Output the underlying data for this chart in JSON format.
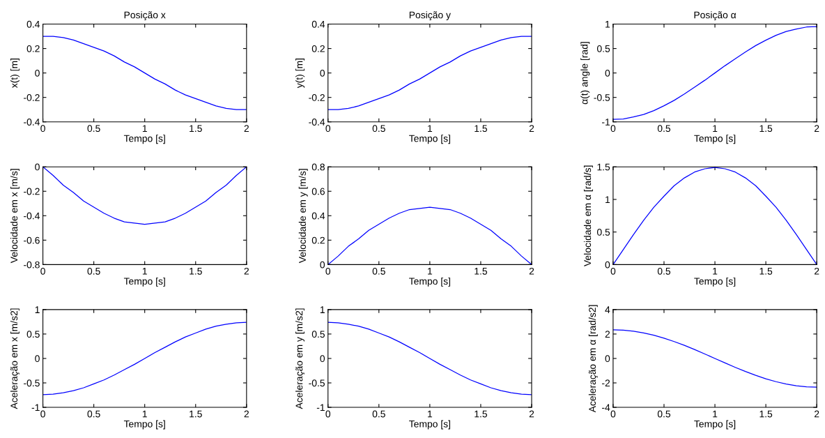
{
  "chart_data": [
    {
      "type": "line",
      "title": "Posição x",
      "xlabel": "Tempo [s]",
      "ylabel": "x(t) [m]",
      "x": [
        0,
        0.1,
        0.2,
        0.3,
        0.4,
        0.5,
        0.6,
        0.7,
        0.8,
        0.9,
        1,
        1.1,
        1.2,
        1.3,
        1.4,
        1.5,
        1.6,
        1.7,
        1.8,
        1.9,
        2
      ],
      "series": [
        {
          "color": "#0000ff",
          "values": [
            0.3,
            0.3,
            0.29,
            0.27,
            0.24,
            0.21,
            0.18,
            0.14,
            0.09,
            0.05,
            0,
            -0.05,
            -0.09,
            -0.14,
            -0.18,
            -0.21,
            -0.24,
            -0.27,
            -0.29,
            -0.3,
            -0.3
          ]
        }
      ],
      "xlim": [
        0,
        2
      ],
      "xticks": [
        0,
        0.5,
        1,
        1.5,
        2
      ],
      "ylim": [
        -0.4,
        0.4
      ],
      "yticks": [
        -0.4,
        -0.2,
        0,
        0.2,
        0.4
      ]
    },
    {
      "type": "line",
      "title": "Posição y",
      "xlabel": "Tempo [s]",
      "ylabel": "y(t) [m]",
      "x": [
        0,
        0.1,
        0.2,
        0.3,
        0.4,
        0.5,
        0.6,
        0.7,
        0.8,
        0.9,
        1,
        1.1,
        1.2,
        1.3,
        1.4,
        1.5,
        1.6,
        1.7,
        1.8,
        1.9,
        2
      ],
      "series": [
        {
          "color": "#0000ff",
          "values": [
            -0.3,
            -0.3,
            -0.29,
            -0.27,
            -0.24,
            -0.21,
            -0.18,
            -0.14,
            -0.09,
            -0.05,
            0,
            0.05,
            0.09,
            0.14,
            0.18,
            0.21,
            0.24,
            0.27,
            0.29,
            0.3,
            0.3
          ]
        }
      ],
      "xlim": [
        0,
        2
      ],
      "xticks": [
        0,
        0.5,
        1,
        1.5,
        2
      ],
      "ylim": [
        -0.4,
        0.4
      ],
      "yticks": [
        -0.4,
        -0.2,
        0,
        0.2,
        0.4
      ]
    },
    {
      "type": "line",
      "title": "Posição α",
      "xlabel": "Tempo [s]",
      "ylabel": "α(t) angle [rad]",
      "x": [
        0,
        0.1,
        0.2,
        0.3,
        0.4,
        0.5,
        0.6,
        0.7,
        0.8,
        0.9,
        1,
        1.1,
        1.2,
        1.3,
        1.4,
        1.5,
        1.6,
        1.7,
        1.8,
        1.9,
        2
      ],
      "series": [
        {
          "color": "#0000ff",
          "values": [
            -0.95,
            -0.94,
            -0.9,
            -0.85,
            -0.77,
            -0.67,
            -0.56,
            -0.43,
            -0.29,
            -0.15,
            0,
            0.15,
            0.29,
            0.43,
            0.56,
            0.67,
            0.77,
            0.85,
            0.9,
            0.94,
            0.95
          ]
        }
      ],
      "xlim": [
        0,
        2
      ],
      "xticks": [
        0,
        0.5,
        1,
        1.5,
        2
      ],
      "ylim": [
        -1,
        1
      ],
      "yticks": [
        -1,
        -0.5,
        0,
        0.5,
        1
      ]
    },
    {
      "type": "line",
      "xlabel": "Tempo [s]",
      "ylabel": "Velocidade em x [m/s]",
      "x": [
        0,
        0.1,
        0.2,
        0.3,
        0.4,
        0.5,
        0.6,
        0.7,
        0.8,
        0.9,
        1,
        1.1,
        1.2,
        1.3,
        1.4,
        1.5,
        1.6,
        1.7,
        1.8,
        1.9,
        2
      ],
      "series": [
        {
          "color": "#0000ff",
          "values": [
            0,
            -0.07,
            -0.15,
            -0.21,
            -0.28,
            -0.33,
            -0.38,
            -0.42,
            -0.45,
            -0.46,
            -0.47,
            -0.46,
            -0.45,
            -0.42,
            -0.38,
            -0.33,
            -0.28,
            -0.21,
            -0.15,
            -0.07,
            0
          ]
        }
      ],
      "xlim": [
        0,
        2
      ],
      "xticks": [
        0,
        0.5,
        1,
        1.5,
        2
      ],
      "ylim": [
        -0.8,
        0
      ],
      "yticks": [
        -0.8,
        -0.6,
        -0.4,
        -0.2,
        0
      ]
    },
    {
      "type": "line",
      "xlabel": "Tempo [s]",
      "ylabel": "Velocidade em y [m/s]",
      "x": [
        0,
        0.1,
        0.2,
        0.3,
        0.4,
        0.5,
        0.6,
        0.7,
        0.8,
        0.9,
        1,
        1.1,
        1.2,
        1.3,
        1.4,
        1.5,
        1.6,
        1.7,
        1.8,
        1.9,
        2
      ],
      "series": [
        {
          "color": "#0000ff",
          "values": [
            0,
            0.07,
            0.15,
            0.21,
            0.28,
            0.33,
            0.38,
            0.42,
            0.45,
            0.46,
            0.47,
            0.46,
            0.45,
            0.42,
            0.38,
            0.33,
            0.28,
            0.21,
            0.15,
            0.07,
            0
          ]
        }
      ],
      "xlim": [
        0,
        2
      ],
      "xticks": [
        0,
        0.5,
        1,
        1.5,
        2
      ],
      "ylim": [
        0,
        0.8
      ],
      "yticks": [
        0,
        0.2,
        0.4,
        0.6,
        0.8
      ]
    },
    {
      "type": "line",
      "xlabel": "Tempo [s]",
      "ylabel": "Velocidade em α [rad/s]",
      "x": [
        0,
        0.1,
        0.2,
        0.3,
        0.4,
        0.5,
        0.6,
        0.7,
        0.8,
        0.9,
        1,
        1.1,
        1.2,
        1.3,
        1.4,
        1.5,
        1.6,
        1.7,
        1.8,
        1.9,
        2
      ],
      "series": [
        {
          "color": "#0000ff",
          "values": [
            0,
            0.23,
            0.46,
            0.68,
            0.88,
            1.05,
            1.21,
            1.33,
            1.42,
            1.47,
            1.49,
            1.47,
            1.42,
            1.33,
            1.21,
            1.05,
            0.88,
            0.68,
            0.46,
            0.23,
            0
          ]
        }
      ],
      "xlim": [
        0,
        2
      ],
      "xticks": [
        0,
        0.5,
        1,
        1.5,
        2
      ],
      "ylim": [
        0,
        1.5
      ],
      "yticks": [
        0,
        0.5,
        1,
        1.5
      ]
    },
    {
      "type": "line",
      "xlabel": "Tempo [s]",
      "ylabel": "Aceleração em x [m/s2]",
      "x": [
        0,
        0.1,
        0.2,
        0.3,
        0.4,
        0.5,
        0.6,
        0.7,
        0.8,
        0.9,
        1,
        1.1,
        1.2,
        1.3,
        1.4,
        1.5,
        1.6,
        1.7,
        1.8,
        1.9,
        2
      ],
      "series": [
        {
          "color": "#0000ff",
          "values": [
            -0.74,
            -0.73,
            -0.7,
            -0.66,
            -0.6,
            -0.52,
            -0.44,
            -0.34,
            -0.23,
            -0.12,
            0,
            0.12,
            0.23,
            0.34,
            0.44,
            0.52,
            0.6,
            0.66,
            0.7,
            0.73,
            0.74
          ]
        }
      ],
      "xlim": [
        0,
        2
      ],
      "xticks": [
        0,
        0.5,
        1,
        1.5,
        2
      ],
      "ylim": [
        -1,
        1
      ],
      "yticks": [
        -1,
        -0.5,
        0,
        0.5,
        1
      ]
    },
    {
      "type": "line",
      "xlabel": "Tempo [s]",
      "ylabel": "Aceleração em y [m/s2]",
      "x": [
        0,
        0.1,
        0.2,
        0.3,
        0.4,
        0.5,
        0.6,
        0.7,
        0.8,
        0.9,
        1,
        1.1,
        1.2,
        1.3,
        1.4,
        1.5,
        1.6,
        1.7,
        1.8,
        1.9,
        2
      ],
      "series": [
        {
          "color": "#0000ff",
          "values": [
            0.74,
            0.73,
            0.7,
            0.66,
            0.6,
            0.52,
            0.44,
            0.34,
            0.23,
            0.12,
            0,
            -0.12,
            -0.23,
            -0.34,
            -0.44,
            -0.52,
            -0.6,
            -0.66,
            -0.7,
            -0.73,
            -0.74
          ]
        }
      ],
      "xlim": [
        0,
        2
      ],
      "xticks": [
        0,
        0.5,
        1,
        1.5,
        2
      ],
      "ylim": [
        -1,
        1
      ],
      "yticks": [
        -1,
        -0.5,
        0,
        0.5,
        1
      ]
    },
    {
      "type": "line",
      "xlabel": "Tempo [s]",
      "ylabel": "Aceleração em α [rad/s2]",
      "x": [
        0,
        0.1,
        0.2,
        0.3,
        0.4,
        0.5,
        0.6,
        0.7,
        0.8,
        0.9,
        1,
        1.1,
        1.2,
        1.3,
        1.4,
        1.5,
        1.6,
        1.7,
        1.8,
        1.9,
        2
      ],
      "series": [
        {
          "color": "#0000ff",
          "values": [
            2.35,
            2.32,
            2.23,
            2.09,
            1.9,
            1.66,
            1.38,
            1.07,
            0.73,
            0.37,
            0,
            -0.37,
            -0.73,
            -1.07,
            -1.38,
            -1.66,
            -1.9,
            -2.09,
            -2.23,
            -2.32,
            -2.35
          ]
        }
      ],
      "xlim": [
        0,
        2
      ],
      "xticks": [
        0,
        0.5,
        1,
        1.5,
        2
      ],
      "ylim": [
        -4,
        4
      ],
      "yticks": [
        -4,
        -2,
        0,
        2,
        4
      ]
    }
  ]
}
